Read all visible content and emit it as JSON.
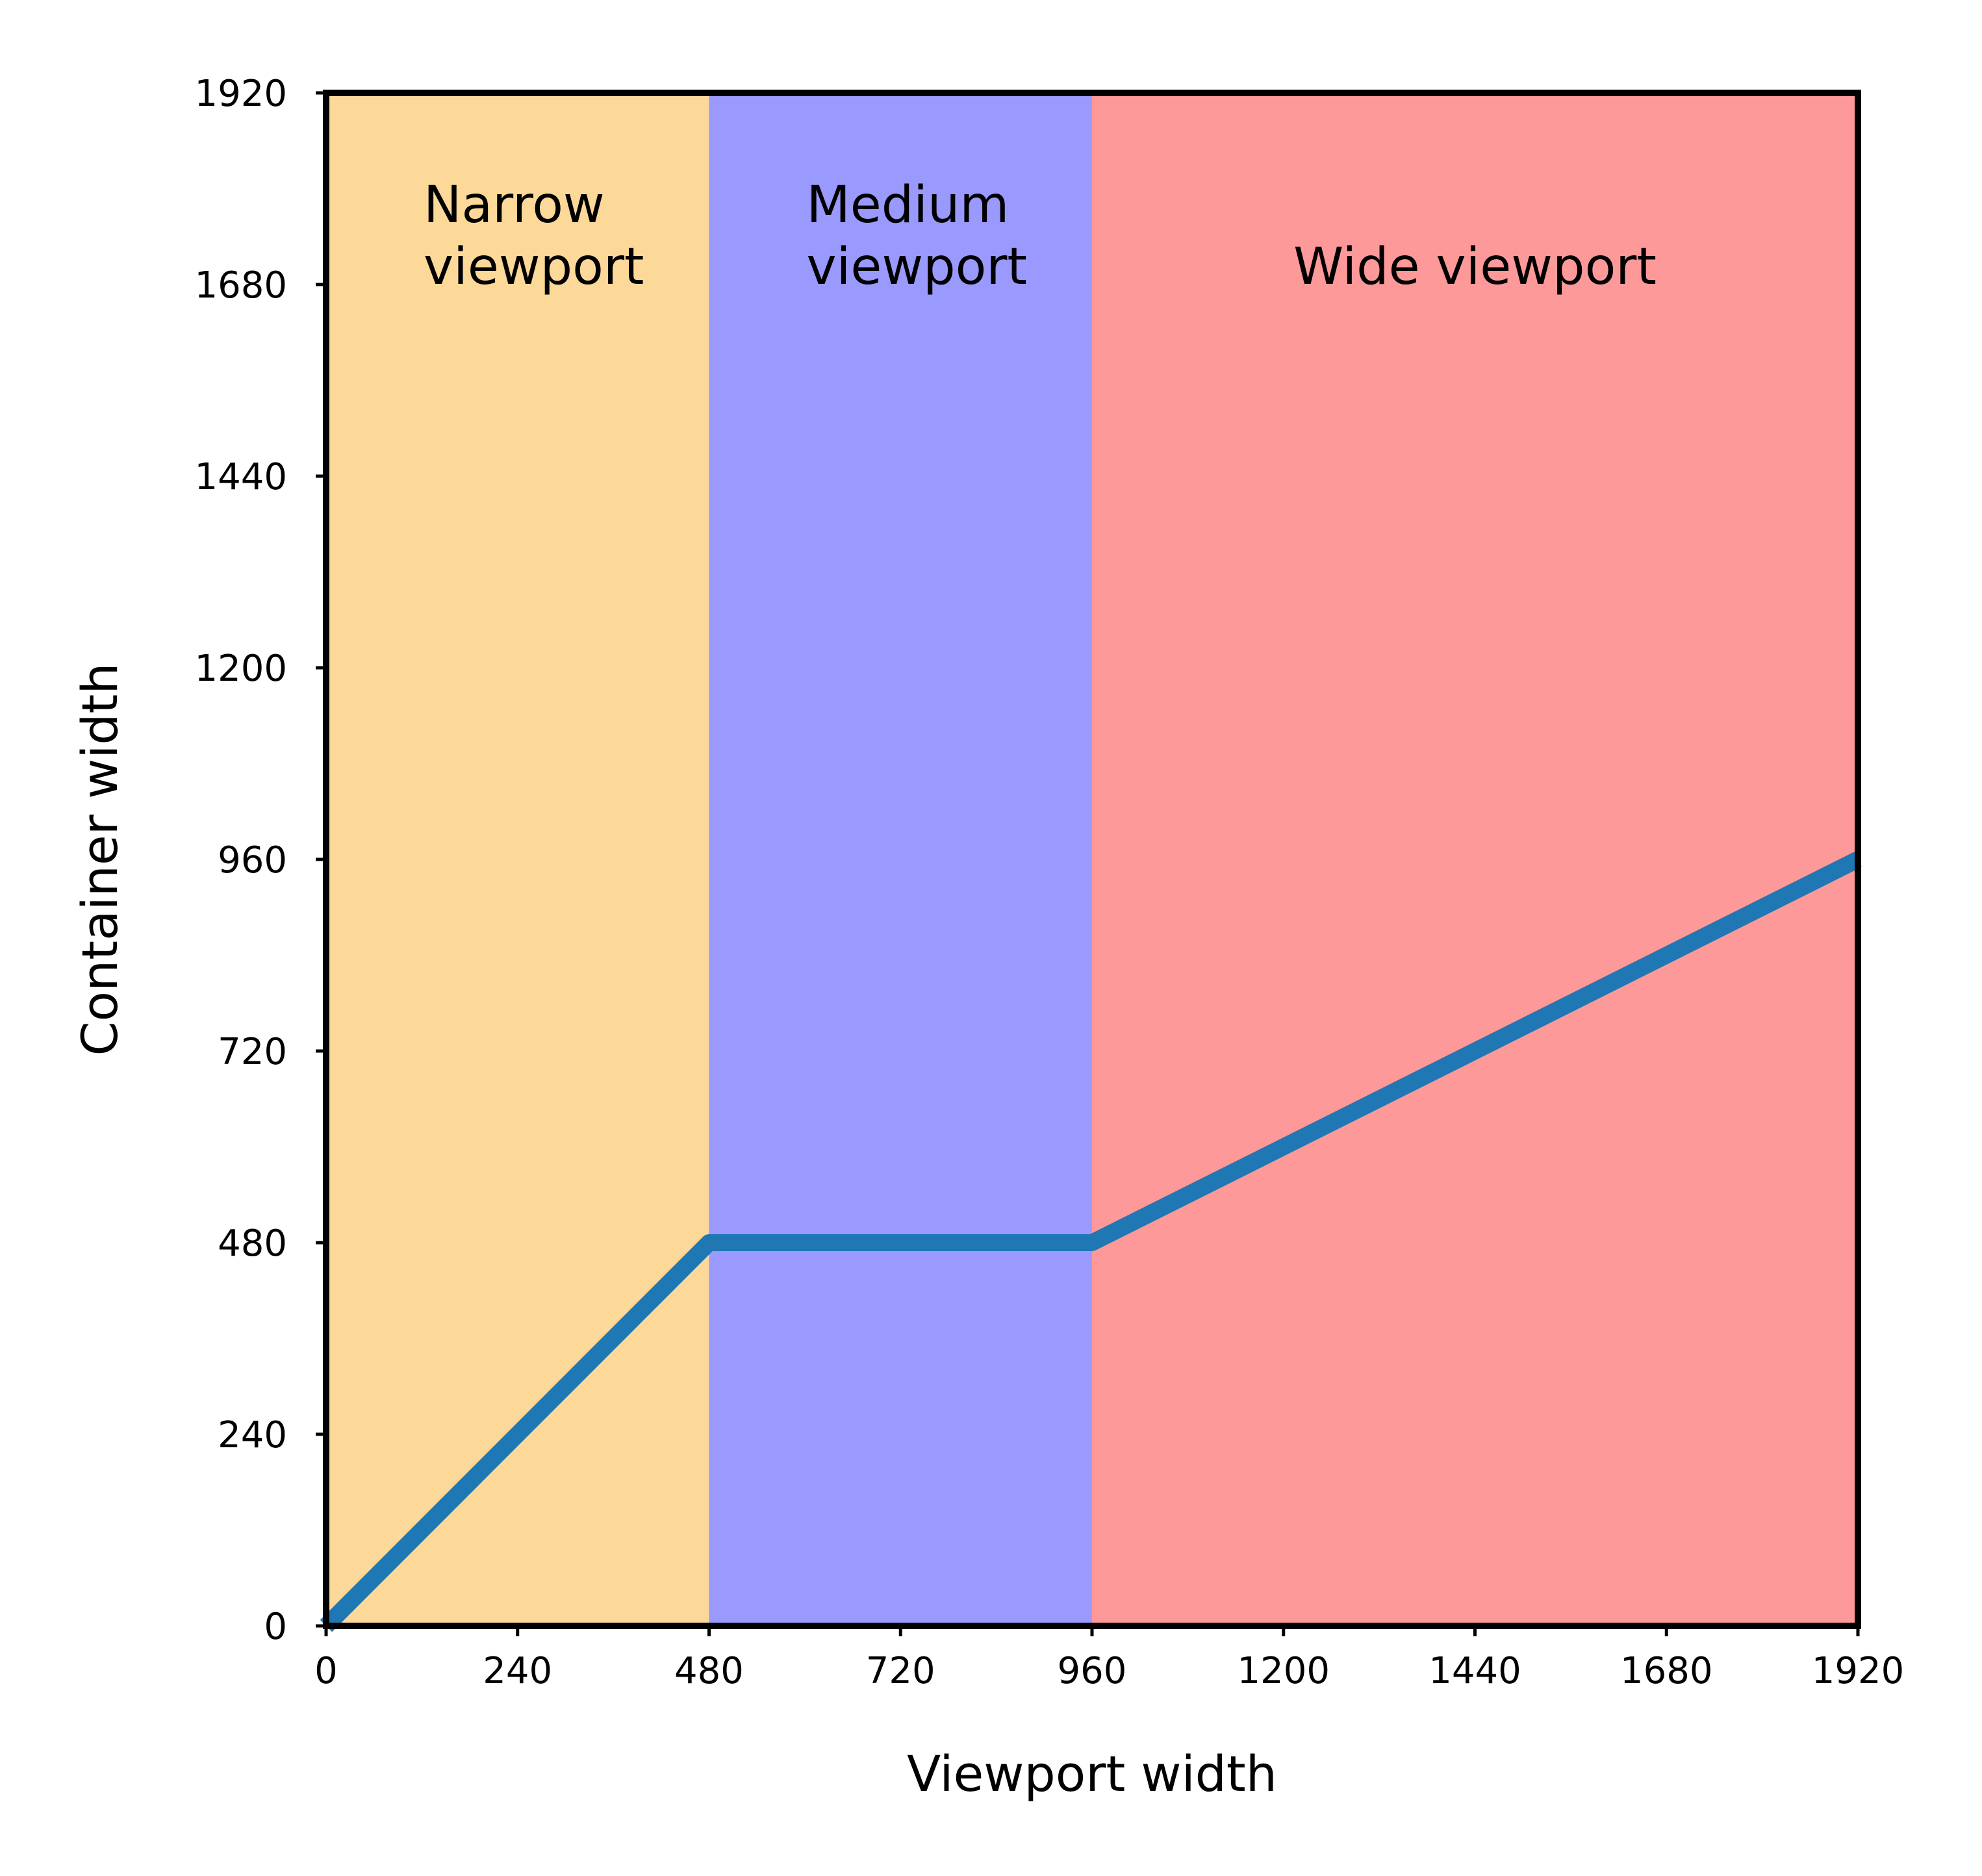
{
  "chart_data": {
    "type": "line",
    "xlabel": "Viewport width",
    "ylabel": "Container width",
    "xlim": [
      0,
      1920
    ],
    "ylim": [
      0,
      1920
    ],
    "xticks": [
      0,
      240,
      480,
      720,
      960,
      1200,
      1440,
      1680,
      1920
    ],
    "yticks": [
      0,
      240,
      480,
      720,
      960,
      1200,
      1440,
      1680,
      1920
    ],
    "grid": false,
    "regions": [
      {
        "label": [
          "Narrow",
          "viewport"
        ],
        "x_start": 0,
        "x_end": 480,
        "color": "#fcd899"
      },
      {
        "label": [
          "Medium",
          "viewport"
        ],
        "x_start": 480,
        "x_end": 960,
        "color": "#9999fe"
      },
      {
        "label": [
          "Wide viewport"
        ],
        "x_start": 960,
        "x_end": 1920,
        "color": "#fe9999"
      }
    ],
    "series": [
      {
        "color": "#1f77b4",
        "x": [
          0,
          480,
          960,
          1920
        ],
        "y": [
          0,
          480,
          480,
          960
        ]
      }
    ]
  }
}
